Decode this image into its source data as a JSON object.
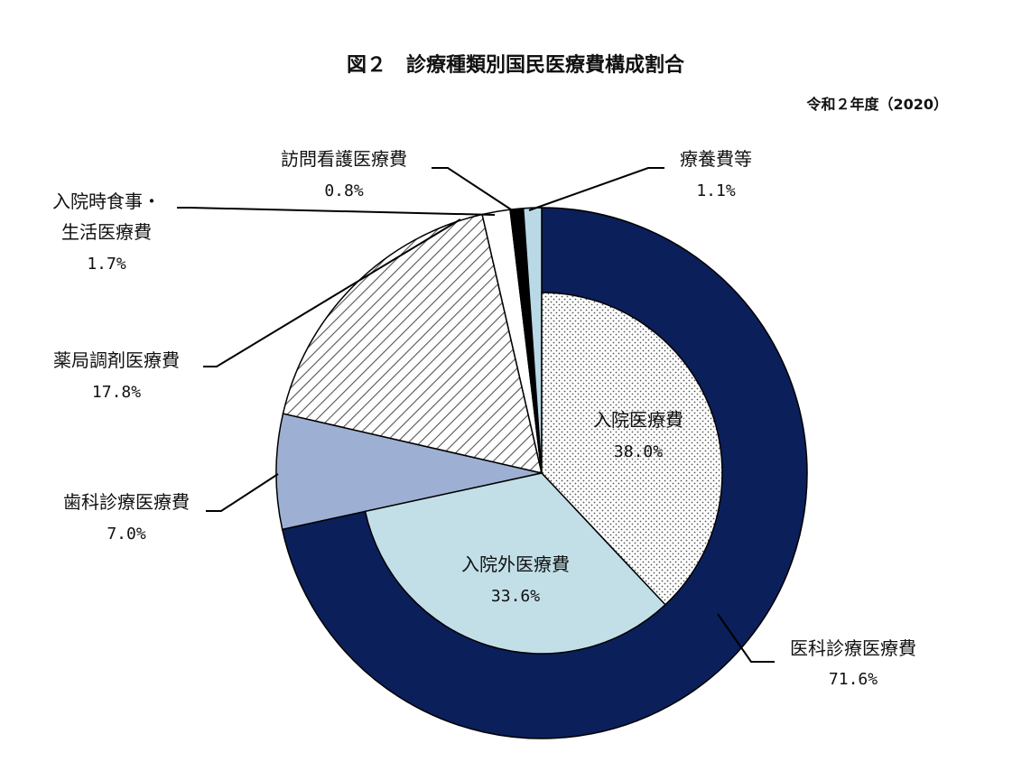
{
  "chart_data": {
    "type": "pie",
    "title": "図２　診療種類別国民医療費構成割合",
    "subtitle": "令和２年度（2020）",
    "outer": [
      {
        "key": "ika",
        "label": "医科診療医療費",
        "value": 71.6,
        "display": "71.6%",
        "color": "#0b1f5a"
      },
      {
        "key": "shika",
        "label": "歯科診療医療費",
        "value": 7.0,
        "display": "7.0%",
        "color": "#9db0d3"
      },
      {
        "key": "yakkyoku",
        "label": "薬局調剤医療費",
        "value": 17.8,
        "display": "17.8%",
        "color": "hatch"
      },
      {
        "key": "shokuji",
        "label_lines": [
          "入院時食事・",
          "生活医療費"
        ],
        "value": 1.7,
        "display": "1.7%",
        "color": "#ffffff"
      },
      {
        "key": "houmon",
        "label": "訪問看護医療費",
        "value": 0.8,
        "display": "0.8%",
        "color": "#000000"
      },
      {
        "key": "ryouyou",
        "label": "療養費等",
        "value": 1.1,
        "display": "1.1%",
        "color": "#b9d9e6"
      }
    ],
    "inner": [
      {
        "key": "nyuin",
        "label": "入院医療費",
        "value": 38.0,
        "display": "38.0%",
        "color": "dots"
      },
      {
        "key": "gairai",
        "label": "入院外医療費",
        "value": 33.6,
        "display": "33.6%",
        "color": "#c2dfe8"
      }
    ]
  }
}
